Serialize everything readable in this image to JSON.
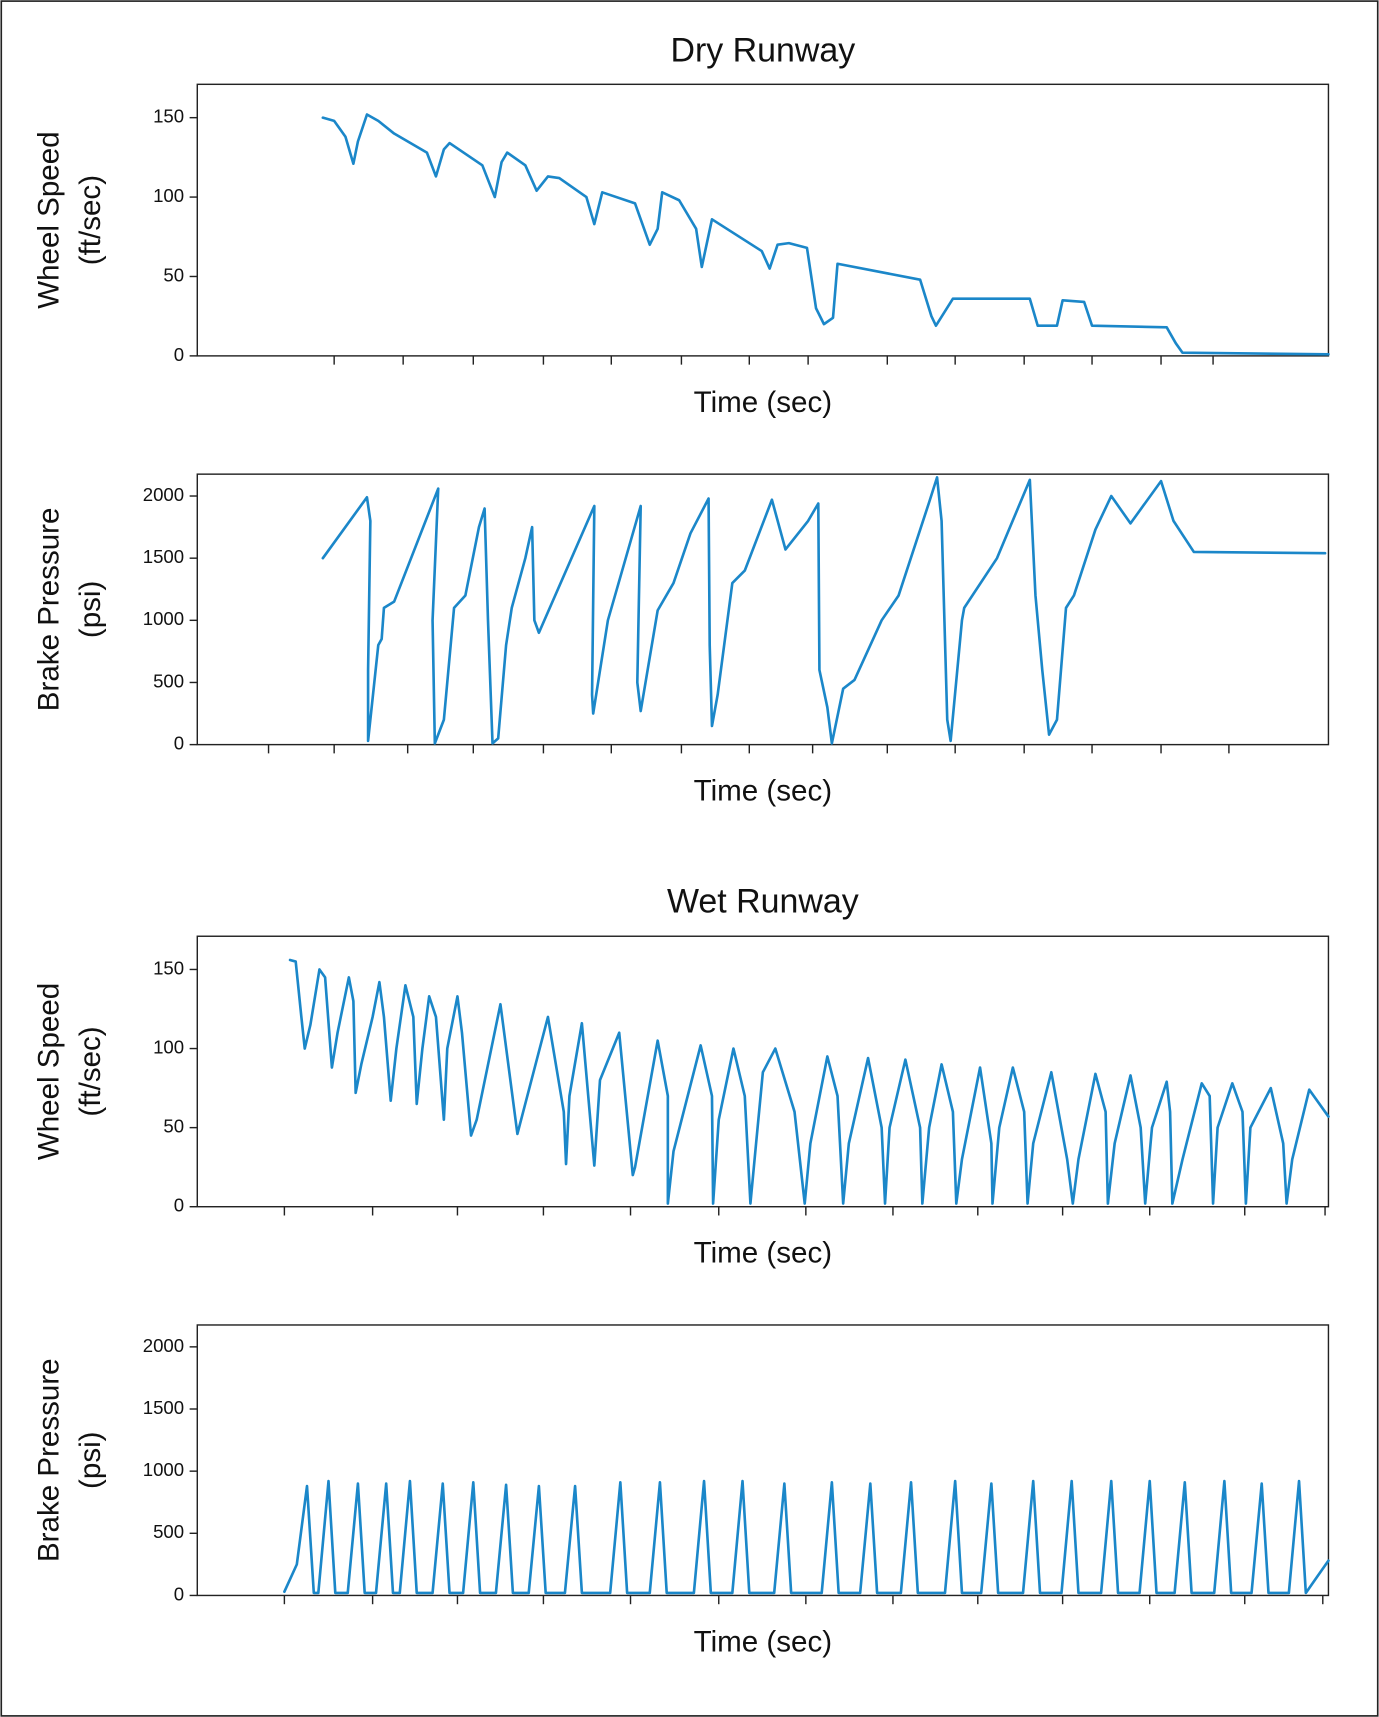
{
  "chart_data": [
    {
      "type": "line",
      "title": "Dry Runway",
      "ylabel": [
        "Wheel Speed",
        "(ft/sec)"
      ],
      "xlabel": "Time (sec)",
      "xlim": [
        0,
        100
      ],
      "xticks": [
        12.1,
        18.2,
        24.4,
        30.6,
        36.6,
        42.8,
        48.8,
        54.0,
        61.0,
        67.0,
        73.1,
        79.1,
        85.2,
        89.8
      ],
      "ylim": [
        0,
        171
      ],
      "yticks": [
        0,
        50,
        100,
        150
      ],
      "series": [
        {
          "color": "#1b87c9",
          "x": [
            11.1,
            12.1,
            13.1,
            13.8,
            14.2,
            15.0,
            16.0,
            17.4,
            20.3,
            21.1,
            21.8,
            22.3,
            25.2,
            26.3,
            26.9,
            27.4,
            29.0,
            30.0,
            31.0,
            32.0,
            34.4,
            35.1,
            35.8,
            38.7,
            40.0,
            40.7,
            41.1,
            42.6,
            44.1,
            44.6,
            45.5,
            49.9,
            50.6,
            51.3,
            52.3,
            53.9,
            54.7,
            55.4,
            56.2,
            56.6,
            63.9,
            64.9,
            65.3,
            66.8,
            73.6,
            74.3,
            76.0,
            76.5,
            78.4,
            79.1,
            85.7,
            86.5,
            87.1,
            100
          ],
          "values": [
            150,
            148,
            138,
            121,
            135,
            152,
            148,
            140,
            128,
            113,
            130,
            134,
            120,
            100,
            122,
            128,
            120,
            104,
            113,
            112,
            100,
            83,
            103,
            96,
            70,
            80,
            103,
            98,
            80,
            56,
            86,
            66,
            55,
            70,
            71,
            68,
            30,
            20,
            24,
            58,
            48,
            25,
            19,
            36,
            36,
            19,
            19,
            35,
            34,
            19,
            18,
            8,
            2,
            1
          ]
        }
      ]
    },
    {
      "type": "line",
      "ylabel": [
        "Brake Pressure",
        "(psi)"
      ],
      "xlabel": "Time (sec)",
      "xlim": [
        0,
        100
      ],
      "xticks": [
        6.3,
        12.1,
        18.6,
        24.4,
        30.6,
        36.6,
        42.8,
        48.8,
        54.4,
        61.0,
        67.0,
        73.1,
        79.1,
        85.2,
        91.2
      ],
      "ylim": [
        0,
        2176
      ],
      "yticks": [
        0,
        500,
        1000,
        1500,
        2000
      ],
      "series": [
        {
          "color": "#1b87c9",
          "x": [
            11.1,
            15.0,
            15.3,
            15.1,
            15.1,
            16.0,
            16.3,
            16.5,
            17.4,
            21.3,
            20.8,
            21.0,
            21.8,
            22.7,
            23.7,
            24.9,
            25.4,
            25.7,
            26.1,
            26.6,
            27.3,
            27.8,
            29.0,
            29.6,
            29.8,
            30.2,
            35.1,
            34.9,
            35.0,
            36.3,
            39.2,
            38.9,
            39.2,
            40.7,
            42.1,
            43.6,
            45.2,
            45.3,
            45.5,
            46.0,
            47.3,
            48.4,
            50.8,
            52.0,
            54.0,
            54.9,
            55.0,
            55.7,
            56.1,
            57.1,
            58.1,
            60.5,
            62.0,
            64.7,
            65.4,
            65.8,
            66.3,
            66.6,
            67.6,
            67.8,
            70.7,
            73.6,
            74.1,
            74.7,
            75.3,
            76.0,
            76.8,
            77.5,
            79.4,
            80.8,
            82.5,
            85.2,
            86.3,
            88.1,
            99.7
          ],
          "values": [
            1500,
            1990,
            1800,
            600,
            30,
            800,
            850,
            1100,
            1150,
            2060,
            1000,
            10,
            200,
            1100,
            1200,
            1750,
            1900,
            1000,
            10,
            50,
            800,
            1100,
            1500,
            1750,
            1000,
            900,
            1920,
            400,
            250,
            1000,
            1920,
            500,
            270,
            1080,
            1300,
            1700,
            1980,
            800,
            150,
            400,
            1300,
            1400,
            1970,
            1570,
            1800,
            1940,
            600,
            300,
            10,
            450,
            520,
            1000,
            1200,
            1950,
            2150,
            1800,
            200,
            30,
            1000,
            1100,
            1500,
            2130,
            1200,
            600,
            80,
            200,
            1100,
            1200,
            1730,
            2000,
            1780,
            2120,
            1800,
            1550,
            1540
          ]
        }
      ]
    },
    {
      "type": "line",
      "title": "Wet Runway",
      "ylabel": [
        "Wheel Speed",
        "(ft/sec)"
      ],
      "xlabel": "Time (sec)",
      "xlim": [
        0,
        100
      ],
      "xticks": [
        7.7,
        15.5,
        23.0,
        30.6,
        38.3,
        46.1,
        53.8,
        61.5,
        69.0,
        76.5,
        84.2,
        92.6,
        99.7
      ],
      "ylim": [
        0,
        171
      ],
      "yticks": [
        0,
        50,
        100,
        150
      ],
      "series": [
        {
          "color": "#1b87c9",
          "x": [
            8.2,
            8.7,
            9.2,
            9.5,
            10.0,
            10.8,
            11.3,
            11.9,
            12.4,
            13.4,
            13.8,
            14.0,
            14.5,
            15.5,
            16.1,
            16.5,
            17.1,
            17.6,
            18.4,
            19.1,
            19.4,
            19.9,
            20.5,
            21.1,
            21.8,
            22.1,
            23.0,
            23.4,
            24.2,
            24.7,
            26.8,
            28.3,
            31.0,
            32.4,
            32.6,
            32.9,
            34.0,
            35.1,
            35.6,
            37.3,
            38.5,
            38.7,
            40.7,
            41.6,
            41.6,
            42.1,
            44.5,
            45.5,
            45.6,
            46.1,
            47.4,
            48.4,
            48.9,
            49.4,
            50.0,
            51.1,
            52.8,
            53.7,
            54.2,
            55.7,
            56.6,
            57.1,
            57.6,
            59.3,
            60.5,
            60.8,
            61.2,
            62.6,
            63.9,
            64.1,
            64.7,
            65.8,
            66.8,
            67.1,
            67.6,
            69.2,
            70.2,
            70.3,
            70.9,
            72.1,
            73.1,
            73.4,
            73.9,
            75.5,
            76.9,
            77.4,
            77.9,
            79.4,
            80.3,
            80.5,
            81.1,
            82.5,
            83.4,
            83.8,
            84.4,
            85.7,
            86.0,
            86.2,
            87.1,
            88.8,
            89.5,
            89.8,
            90.2,
            91.5,
            92.4,
            92.7,
            93.1,
            94.9,
            96.0,
            96.3,
            96.8,
            98.3,
            100
          ],
          "values": [
            156,
            155,
            120,
            100,
            115,
            150,
            145,
            88,
            110,
            145,
            130,
            72,
            90,
            120,
            142,
            120,
            67,
            100,
            140,
            120,
            65,
            100,
            133,
            120,
            55,
            100,
            133,
            110,
            45,
            55,
            128,
            46,
            120,
            60,
            27,
            70,
            116,
            26,
            80,
            110,
            20,
            25,
            105,
            70,
            2,
            35,
            102,
            70,
            2,
            55,
            100,
            70,
            2,
            40,
            85,
            100,
            60,
            2,
            40,
            95,
            70,
            2,
            40,
            94,
            50,
            2,
            50,
            93,
            50,
            2,
            50,
            90,
            60,
            2,
            30,
            88,
            40,
            2,
            50,
            88,
            60,
            2,
            40,
            85,
            30,
            2,
            30,
            84,
            60,
            2,
            40,
            83,
            50,
            2,
            50,
            79,
            60,
            2,
            30,
            78,
            70,
            2,
            50,
            78,
            60,
            2,
            50,
            75,
            40,
            2,
            30,
            74,
            57
          ]
        }
      ]
    },
    {
      "type": "line",
      "ylabel": [
        "Brake Pressure",
        "(psi)"
      ],
      "xlabel": "Time (sec)",
      "xlim": [
        0,
        100
      ],
      "xticks": [
        7.7,
        15.5,
        23.0,
        30.6,
        38.3,
        46.1,
        53.8,
        61.5,
        69.0,
        76.5,
        84.2,
        92.6,
        99.5
      ],
      "ylim": [
        0,
        2176
      ],
      "yticks": [
        0,
        500,
        1000,
        1500,
        2000
      ],
      "series": [
        {
          "color": "#1b87c9",
          "x": [
            7.7,
            8.8,
            9.7,
            10.3,
            10.7,
            11.6,
            12.2,
            13.3,
            14.2,
            14.8,
            15.8,
            16.7,
            17.3,
            17.9,
            18.8,
            19.4,
            20.8,
            21.7,
            22.3,
            23.5,
            24.4,
            25.0,
            26.4,
            27.3,
            27.9,
            29.3,
            30.2,
            30.8,
            32.5,
            33.4,
            34.0,
            36.5,
            37.4,
            38.0,
            40.0,
            40.9,
            41.5,
            43.9,
            44.8,
            45.4,
            47.3,
            48.2,
            48.8,
            51.0,
            51.9,
            52.5,
            55.2,
            56.1,
            56.7,
            58.6,
            59.5,
            60.1,
            62.2,
            63.1,
            63.7,
            66.1,
            67.0,
            67.6,
            69.3,
            70.2,
            70.8,
            73.0,
            73.9,
            74.5,
            76.4,
            77.3,
            77.9,
            79.9,
            80.8,
            81.4,
            83.3,
            84.2,
            84.8,
            86.4,
            87.3,
            87.9,
            89.9,
            90.8,
            91.4,
            93.2,
            94.1,
            94.7,
            96.5,
            97.4,
            98.0,
            99.0,
            100
          ],
          "values": [
            30,
            250,
            880,
            20,
            20,
            920,
            20,
            20,
            900,
            20,
            20,
            900,
            20,
            20,
            920,
            20,
            20,
            900,
            20,
            20,
            910,
            20,
            20,
            890,
            20,
            20,
            880,
            20,
            20,
            880,
            20,
            20,
            910,
            20,
            20,
            910,
            20,
            20,
            920,
            20,
            20,
            920,
            20,
            20,
            900,
            20,
            20,
            910,
            20,
            20,
            900,
            20,
            20,
            910,
            20,
            20,
            920,
            20,
            20,
            900,
            20,
            20,
            920,
            20,
            20,
            920,
            20,
            20,
            920,
            20,
            20,
            920,
            20,
            20,
            910,
            20,
            20,
            920,
            20,
            20,
            900,
            20,
            20,
            920,
            20,
            150,
            280
          ]
        }
      ]
    }
  ]
}
